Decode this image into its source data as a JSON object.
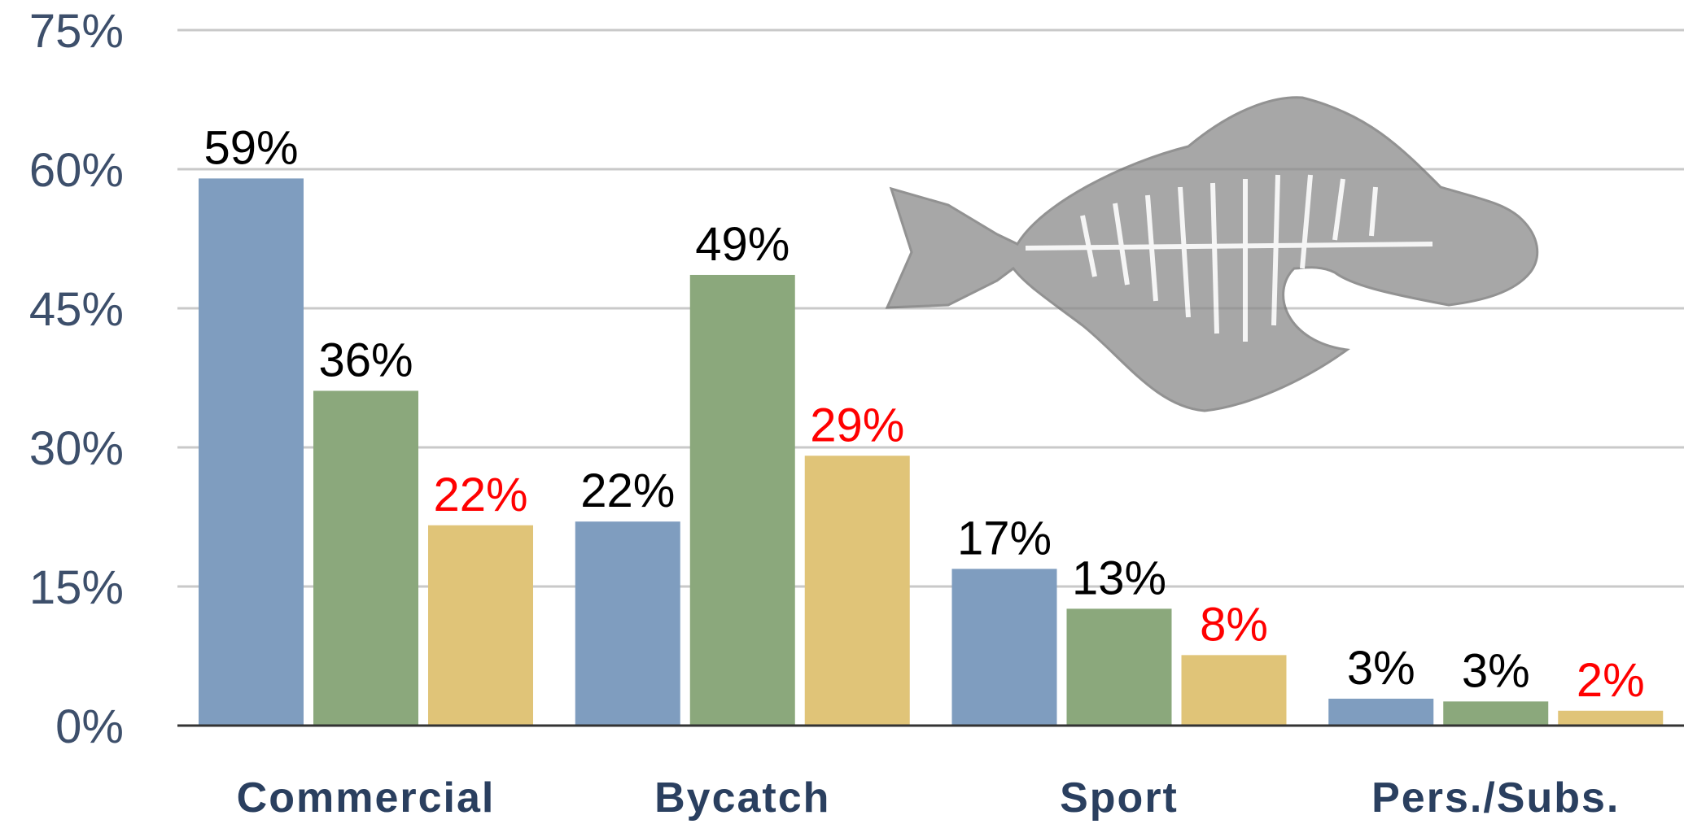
{
  "chart_data": {
    "type": "bar",
    "categories": [
      "Commercial",
      "Bycatch",
      "Sport",
      "Pers./Subs."
    ],
    "series": [
      {
        "color": "#7f9dbf",
        "label_color": "#000000",
        "values": [
          59,
          22,
          16.9,
          2.9
        ],
        "value_labels": [
          "59%",
          "22%",
          "17%",
          "3%"
        ]
      },
      {
        "color": "#8ba87c",
        "label_color": "#000000",
        "values": [
          36.1,
          48.6,
          12.6,
          2.6
        ],
        "value_labels": [
          "36%",
          "49%",
          "13%",
          "3%"
        ]
      },
      {
        "color": "#e0c478",
        "label_color": "#ff0000",
        "values": [
          21.6,
          29.1,
          7.6,
          1.6
        ],
        "value_labels": [
          "22%",
          "29%",
          "8%",
          "2%"
        ]
      }
    ],
    "ylim": [
      0,
      75
    ],
    "yticks": [
      {
        "value": 0,
        "label": "0%"
      },
      {
        "value": 15,
        "label": "15%"
      },
      {
        "value": 30,
        "label": "30%"
      },
      {
        "value": 45,
        "label": "45%"
      },
      {
        "value": 60,
        "label": "60%"
      },
      {
        "value": 75,
        "label": "75%"
      }
    ],
    "grid": true
  }
}
